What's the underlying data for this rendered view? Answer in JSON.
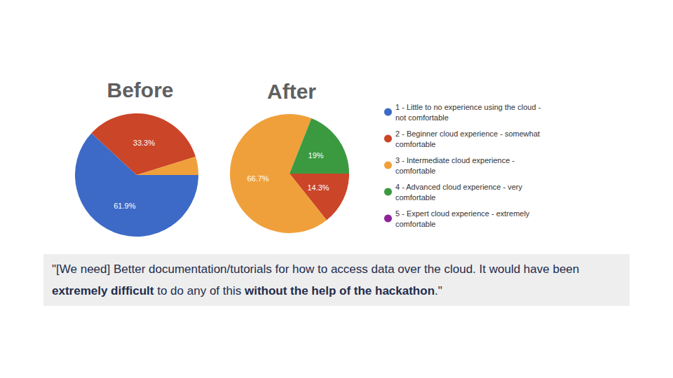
{
  "chart_data": [
    {
      "type": "pie",
      "title": "Before",
      "categories": [
        "1 - Little to no experience using the cloud - not comfortable",
        "2 - Beginner cloud experience - somewhat comfortable",
        "3 - Intermediate cloud experience - comfortable",
        "4 - Advanced cloud experience - very comfortable",
        "5 - Expert cloud experience - extremely comfortable"
      ],
      "values": [
        61.9,
        33.3,
        4.8,
        0,
        0
      ],
      "value_labels": [
        "61.9%",
        "33.3%",
        null,
        null,
        null
      ],
      "colors": [
        "#3d6ac6",
        "#cb4528",
        "#f0a03a",
        "#3b9a40",
        "#8f2299"
      ],
      "data_labels": true
    },
    {
      "type": "pie",
      "title": "After",
      "categories": [
        "1 - Little to no experience using the cloud - not comfortable",
        "2 - Beginner cloud experience - somewhat comfortable",
        "3 - Intermediate cloud experience - comfortable",
        "4 - Advanced cloud experience - very comfortable",
        "5 - Expert cloud experience - extremely comfortable"
      ],
      "values": [
        0,
        14.3,
        66.7,
        19,
        0
      ],
      "value_labels": [
        null,
        "14.3%",
        "66.7%",
        "19%",
        null
      ],
      "colors": [
        "#3d6ac6",
        "#cb4528",
        "#f0a03a",
        "#3b9a40",
        "#8f2299"
      ],
      "data_labels": true,
      "legend": "right"
    }
  ],
  "quote": {
    "segments": [
      {
        "text": "\"[We need] Better documentation/tutorials for how to access data over the cloud. It would have been ",
        "bold": false
      },
      {
        "text": "extremely difficult",
        "bold": true
      },
      {
        "text": " to do any of this ",
        "bold": false
      },
      {
        "text": "without the help of the hackathon",
        "bold": true
      },
      {
        "text": ".\"",
        "bold": false
      }
    ]
  }
}
